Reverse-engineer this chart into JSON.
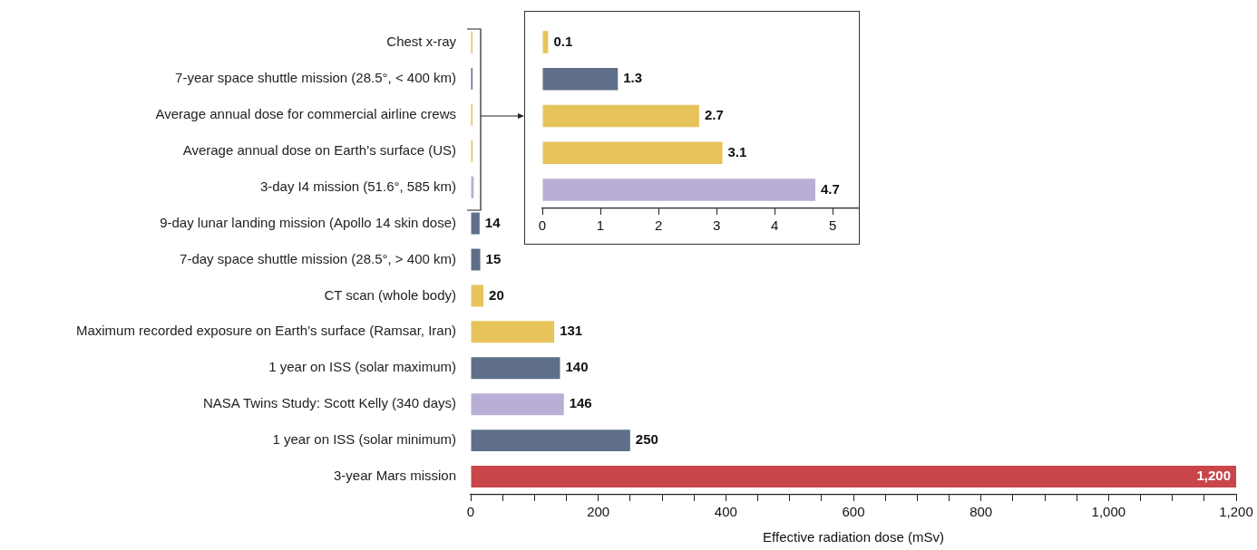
{
  "chart_data": [
    {
      "type": "bar",
      "orientation": "horizontal",
      "xlabel": "Effective radiation dose (mSv)",
      "categories": [
        "Chest x-ray",
        "7-year space shuttle mission (28.5°, < 400 km)",
        "Average annual dose for commercial airline crews",
        "Average annual dose on Earth’s surface (US)",
        "3-day I4 mission (51.6°, 585 km)",
        "9-day lunar landing mission (Apollo 14 skin dose)",
        "7-day space shuttle mission (28.5°, > 400 km)",
        "CT scan (whole body)",
        "Maximum recorded exposure on Earth’s surface (Ramsar, Iran)",
        "1 year on ISS (solar maximum)",
        "NASA Twins Study: Scott Kelly (340 days)",
        "1 year on ISS (solar minimum)",
        "3-year Mars mission"
      ],
      "values": [
        0.1,
        1.3,
        2.7,
        3.1,
        4.7,
        14,
        15,
        20,
        131,
        140,
        146,
        250,
        1200
      ],
      "colors": [
        "#e7c45b",
        "#5f6f8a",
        "#e7c45b",
        "#e7c45b",
        "#b9aed6",
        "#5f6f8a",
        "#5f6f8a",
        "#e7c45b",
        "#e7c45b",
        "#5f6f8a",
        "#b9aed6",
        "#5f6f8a",
        "#c8464a"
      ],
      "value_labels": [
        null,
        null,
        null,
        null,
        null,
        "14",
        "15",
        "20",
        "131",
        "140",
        "146",
        "250",
        "1,200"
      ],
      "xlim": [
        0,
        1200
      ],
      "xticks": [
        0,
        {
          "value": 50,
          "label": null
        },
        {
          "value": 100,
          "label": null
        },
        {
          "value": 150,
          "label": null
        },
        200,
        {
          "value": 250,
          "label": null
        },
        {
          "value": 300,
          "label": null
        },
        {
          "value": 350,
          "label": null
        },
        400,
        {
          "value": 450,
          "label": null
        },
        {
          "value": 500,
          "label": null
        },
        {
          "value": 550,
          "label": null
        },
        600,
        {
          "value": 650,
          "label": null
        },
        {
          "value": 700,
          "label": null
        },
        {
          "value": 750,
          "label": null
        },
        800,
        {
          "value": 850,
          "label": null
        },
        {
          "value": 900,
          "label": null
        },
        {
          "value": 950,
          "label": null
        },
        {
          "value": 1000,
          "label": "1,000"
        },
        {
          "value": 1050,
          "label": null
        },
        {
          "value": 1100,
          "label": null
        },
        {
          "value": 1150,
          "label": null
        },
        {
          "value": 1200,
          "label": "1,200"
        }
      ],
      "grid": false,
      "legend": false
    },
    {
      "type": "bar",
      "orientation": "horizontal",
      "categories": [
        null,
        null,
        null,
        null,
        null
      ],
      "values": [
        0.1,
        1.3,
        2.7,
        3.1,
        4.7
      ],
      "colors": [
        "#e7c45b",
        "#5f6f8a",
        "#e7c45b",
        "#e7c45b",
        "#b9aed6"
      ],
      "data_labels": true,
      "xlim": [
        0,
        5.45
      ],
      "xticks": [
        0,
        1,
        2,
        3,
        4,
        5
      ],
      "grid": false,
      "legend": false
    }
  ]
}
